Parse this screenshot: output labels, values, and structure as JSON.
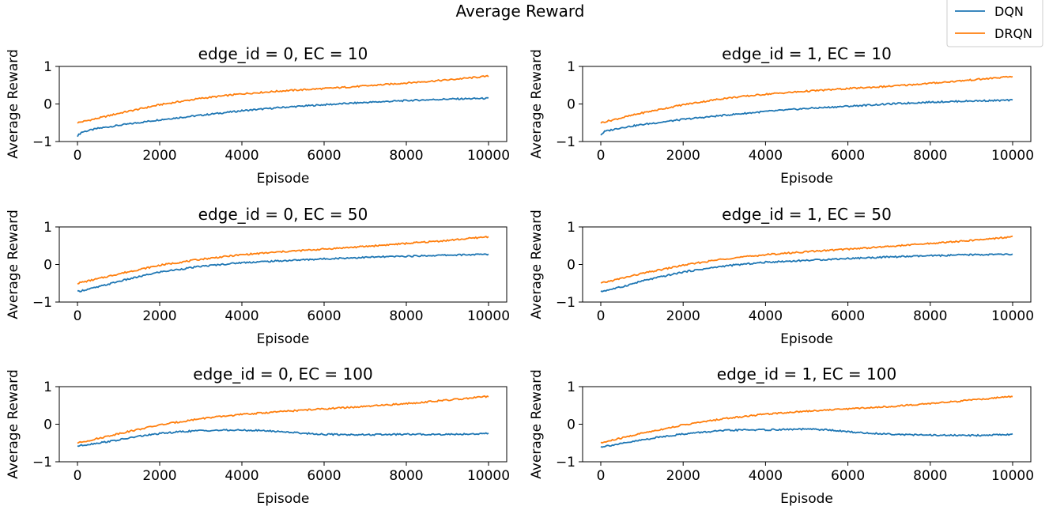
{
  "figure": {
    "suptitle": "Average Reward",
    "legend": {
      "placement": "top-right",
      "entries": [
        {
          "label": "DQN",
          "color": "#1f77b4"
        },
        {
          "label": "DRQN",
          "color": "#ff7f0e"
        }
      ]
    }
  },
  "chart_data": [
    {
      "type": "line",
      "title": "edge_id = 0, EC = 10",
      "xlabel": "Episode",
      "ylabel": "Average Reward",
      "xlim": [
        0,
        10000
      ],
      "ylim": [
        -1,
        1
      ],
      "xticks": [
        0,
        2000,
        4000,
        6000,
        8000,
        10000
      ],
      "yticks": [
        -1,
        0,
        1
      ],
      "grid": false,
      "series": [
        {
          "name": "DQN",
          "color": "#1f77b4",
          "x": [
            0,
            100,
            500,
            1000,
            2000,
            3000,
            4000,
            5000,
            6000,
            7000,
            8000,
            9000,
            10000
          ],
          "y": [
            -0.85,
            -0.75,
            -0.65,
            -0.57,
            -0.42,
            -0.3,
            -0.18,
            -0.09,
            -0.02,
            0.04,
            0.09,
            0.13,
            0.15
          ]
        },
        {
          "name": "DRQN",
          "color": "#ff7f0e",
          "x": [
            0,
            500,
            1000,
            2000,
            3000,
            4000,
            5000,
            6000,
            7000,
            8000,
            9000,
            10000
          ],
          "y": [
            -0.5,
            -0.38,
            -0.25,
            -0.02,
            0.15,
            0.27,
            0.35,
            0.41,
            0.48,
            0.56,
            0.64,
            0.74
          ]
        }
      ]
    },
    {
      "type": "line",
      "title": "edge_id = 1, EC = 10",
      "xlabel": "Episode",
      "ylabel": "Average Reward",
      "xlim": [
        0,
        10000
      ],
      "ylim": [
        -1,
        1
      ],
      "xticks": [
        0,
        2000,
        4000,
        6000,
        8000,
        10000
      ],
      "yticks": [
        -1,
        0,
        1
      ],
      "grid": false,
      "series": [
        {
          "name": "DQN",
          "color": "#1f77b4",
          "x": [
            0,
            100,
            500,
            1000,
            2000,
            3000,
            4000,
            5000,
            6000,
            7000,
            8000,
            9000,
            10000
          ],
          "y": [
            -0.82,
            -0.73,
            -0.63,
            -0.55,
            -0.41,
            -0.3,
            -0.2,
            -0.12,
            -0.06,
            0.0,
            0.05,
            0.08,
            0.1
          ]
        },
        {
          "name": "DRQN",
          "color": "#ff7f0e",
          "x": [
            0,
            500,
            1000,
            2000,
            3000,
            4000,
            5000,
            6000,
            7000,
            8000,
            9000,
            10000
          ],
          "y": [
            -0.5,
            -0.37,
            -0.24,
            -0.02,
            0.15,
            0.26,
            0.34,
            0.41,
            0.47,
            0.55,
            0.64,
            0.73
          ]
        }
      ]
    },
    {
      "type": "line",
      "title": "edge_id = 0, EC = 50",
      "xlabel": "Episode",
      "ylabel": "Average Reward",
      "xlim": [
        0,
        10000
      ],
      "ylim": [
        -1,
        1
      ],
      "xticks": [
        0,
        2000,
        4000,
        6000,
        8000,
        10000
      ],
      "yticks": [
        -1,
        0,
        1
      ],
      "grid": false,
      "series": [
        {
          "name": "DQN",
          "color": "#1f77b4",
          "x": [
            0,
            500,
            1000,
            2000,
            3000,
            4000,
            5000,
            6000,
            7000,
            8000,
            9000,
            10000
          ],
          "y": [
            -0.72,
            -0.6,
            -0.45,
            -0.2,
            -0.05,
            0.05,
            0.1,
            0.15,
            0.19,
            0.22,
            0.25,
            0.27
          ]
        },
        {
          "name": "DRQN",
          "color": "#ff7f0e",
          "x": [
            0,
            500,
            1000,
            2000,
            3000,
            4000,
            5000,
            6000,
            7000,
            8000,
            9000,
            10000
          ],
          "y": [
            -0.5,
            -0.38,
            -0.25,
            -0.02,
            0.14,
            0.26,
            0.34,
            0.41,
            0.48,
            0.56,
            0.64,
            0.74
          ]
        }
      ]
    },
    {
      "type": "line",
      "title": "edge_id = 1, EC = 50",
      "xlabel": "Episode",
      "ylabel": "Average Reward",
      "xlim": [
        0,
        10000
      ],
      "ylim": [
        -1,
        1
      ],
      "xticks": [
        0,
        2000,
        4000,
        6000,
        8000,
        10000
      ],
      "yticks": [
        -1,
        0,
        1
      ],
      "grid": false,
      "series": [
        {
          "name": "DQN",
          "color": "#1f77b4",
          "x": [
            0,
            500,
            1000,
            2000,
            3000,
            4000,
            5000,
            6000,
            7000,
            8000,
            9000,
            10000
          ],
          "y": [
            -0.72,
            -0.6,
            -0.44,
            -0.2,
            -0.04,
            0.06,
            0.11,
            0.16,
            0.2,
            0.23,
            0.26,
            0.27
          ]
        },
        {
          "name": "DRQN",
          "color": "#ff7f0e",
          "x": [
            0,
            500,
            1000,
            2000,
            3000,
            4000,
            5000,
            6000,
            7000,
            8000,
            9000,
            10000
          ],
          "y": [
            -0.5,
            -0.37,
            -0.24,
            -0.02,
            0.15,
            0.26,
            0.34,
            0.41,
            0.48,
            0.56,
            0.64,
            0.74
          ]
        }
      ]
    },
    {
      "type": "line",
      "title": "edge_id = 0, EC = 100",
      "xlabel": "Episode",
      "ylabel": "Average Reward",
      "xlim": [
        0,
        10000
      ],
      "ylim": [
        -1,
        1
      ],
      "xticks": [
        0,
        2000,
        4000,
        6000,
        8000,
        10000
      ],
      "yticks": [
        -1,
        0,
        1
      ],
      "grid": false,
      "series": [
        {
          "name": "DQN",
          "color": "#1f77b4",
          "x": [
            0,
            500,
            1000,
            1500,
            2000,
            2500,
            3000,
            3500,
            4000,
            4500,
            5000,
            5500,
            6000,
            7000,
            8000,
            9000,
            10000
          ],
          "y": [
            -0.58,
            -0.5,
            -0.42,
            -0.32,
            -0.25,
            -0.2,
            -0.17,
            -0.16,
            -0.16,
            -0.17,
            -0.2,
            -0.24,
            -0.27,
            -0.28,
            -0.27,
            -0.27,
            -0.25
          ]
        },
        {
          "name": "DRQN",
          "color": "#ff7f0e",
          "x": [
            0,
            500,
            1000,
            2000,
            3000,
            4000,
            5000,
            6000,
            7000,
            8000,
            9000,
            10000
          ],
          "y": [
            -0.5,
            -0.38,
            -0.25,
            -0.02,
            0.15,
            0.26,
            0.34,
            0.41,
            0.47,
            0.55,
            0.64,
            0.74
          ]
        }
      ]
    },
    {
      "type": "line",
      "title": "edge_id = 1, EC = 100",
      "xlabel": "Episode",
      "ylabel": "Average Reward",
      "xlim": [
        0,
        10000
      ],
      "ylim": [
        -1,
        1
      ],
      "xticks": [
        0,
        2000,
        4000,
        6000,
        8000,
        10000
      ],
      "yticks": [
        -1,
        0,
        1
      ],
      "grid": false,
      "series": [
        {
          "name": "DQN",
          "color": "#1f77b4",
          "x": [
            0,
            500,
            1000,
            1500,
            2000,
            2500,
            3000,
            3500,
            4000,
            4500,
            5000,
            5500,
            6000,
            6500,
            7000,
            7500,
            8000,
            9000,
            10000
          ],
          "y": [
            -0.6,
            -0.52,
            -0.42,
            -0.33,
            -0.26,
            -0.21,
            -0.17,
            -0.15,
            -0.15,
            -0.14,
            -0.13,
            -0.15,
            -0.2,
            -0.24,
            -0.26,
            -0.28,
            -0.29,
            -0.3,
            -0.27
          ]
        },
        {
          "name": "DRQN",
          "color": "#ff7f0e",
          "x": [
            0,
            500,
            1000,
            2000,
            3000,
            4000,
            5000,
            6000,
            7000,
            8000,
            9000,
            10000
          ],
          "y": [
            -0.5,
            -0.37,
            -0.24,
            -0.02,
            0.15,
            0.27,
            0.35,
            0.41,
            0.47,
            0.55,
            0.64,
            0.74
          ]
        }
      ]
    }
  ]
}
